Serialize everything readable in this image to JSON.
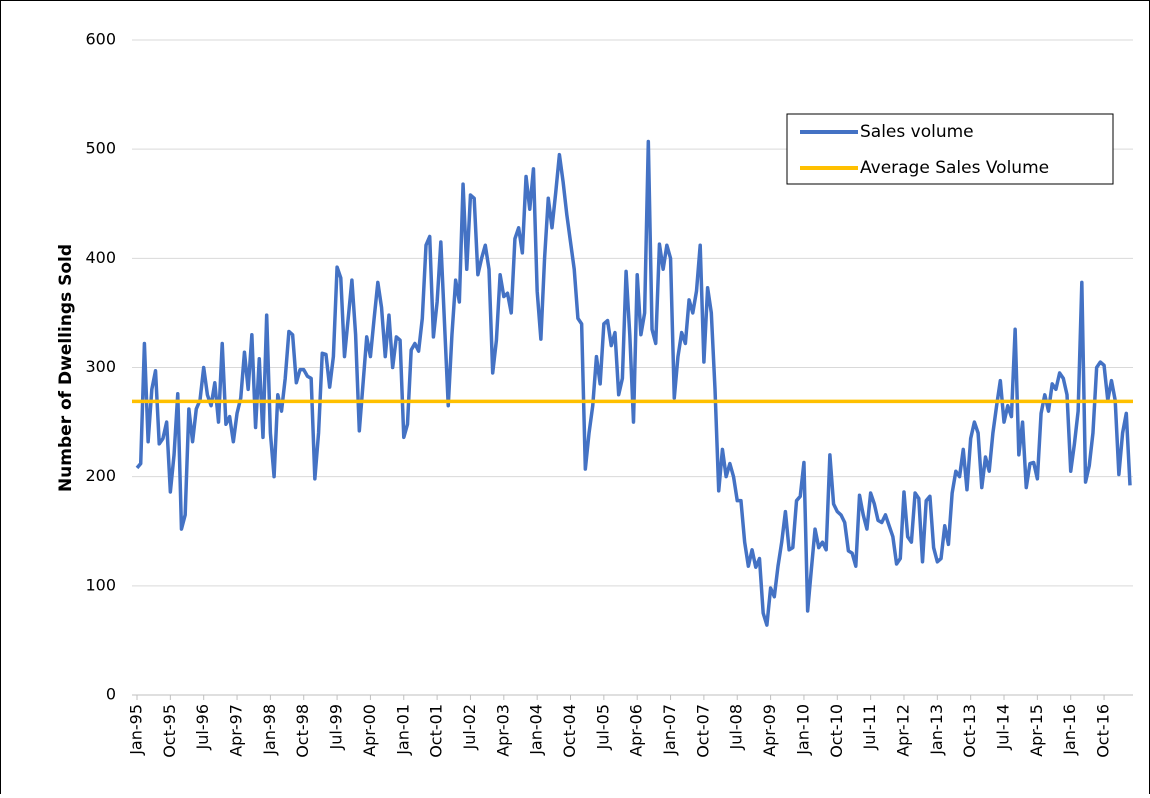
{
  "chart_data": {
    "type": "line",
    "y_label": "Number of Dwellings Sold",
    "categories": [
      "Jan-95",
      null,
      null,
      null,
      null,
      null,
      null,
      null,
      null,
      "Oct-95",
      null,
      null,
      null,
      null,
      null,
      null,
      null,
      null,
      "Jul-96",
      null,
      null,
      null,
      null,
      null,
      null,
      null,
      null,
      "Apr-97",
      null,
      null,
      null,
      null,
      null,
      null,
      null,
      null,
      "Jan-98",
      null,
      null,
      null,
      null,
      null,
      null,
      null,
      null,
      "Oct-98",
      null,
      null,
      null,
      null,
      null,
      null,
      null,
      null,
      "Jul-99",
      null,
      null,
      null,
      null,
      null,
      null,
      null,
      null,
      "Apr-00",
      null,
      null,
      null,
      null,
      null,
      null,
      null,
      null,
      "Jan-01",
      null,
      null,
      null,
      null,
      null,
      null,
      null,
      null,
      "Oct-01",
      null,
      null,
      null,
      null,
      null,
      null,
      null,
      null,
      "Jul-02",
      null,
      null,
      null,
      null,
      null,
      null,
      null,
      null,
      "Apr-03",
      null,
      null,
      null,
      null,
      null,
      null,
      null,
      null,
      "Jan-04",
      null,
      null,
      null,
      null,
      null,
      null,
      null,
      null,
      "Oct-04",
      null,
      null,
      null,
      null,
      null,
      null,
      null,
      null,
      "Jul-05",
      null,
      null,
      null,
      null,
      null,
      null,
      null,
      null,
      "Apr-06",
      null,
      null,
      null,
      null,
      null,
      null,
      null,
      null,
      "Jan-07",
      null,
      null,
      null,
      null,
      null,
      null,
      null,
      null,
      "Oct-07",
      null,
      null,
      null,
      null,
      null,
      null,
      null,
      null,
      "Jul-08",
      null,
      null,
      null,
      null,
      null,
      null,
      null,
      null,
      "Apr-09",
      null,
      null,
      null,
      null,
      null,
      null,
      null,
      null,
      "Jan-10",
      null,
      null,
      null,
      null,
      null,
      null,
      null,
      null,
      "Oct-10",
      null,
      null,
      null,
      null,
      null,
      null,
      null,
      null,
      "Jul-11",
      null,
      null,
      null,
      null,
      null,
      null,
      null,
      null,
      "Apr-12",
      null,
      null,
      null,
      null,
      null,
      null,
      null,
      null,
      "Jan-13",
      null,
      null,
      null,
      null,
      null,
      null,
      null,
      null,
      "Oct-13",
      null,
      null,
      null,
      null,
      null,
      null,
      null,
      null,
      "Jul-14",
      null,
      null,
      null,
      null,
      null,
      null,
      null,
      null,
      "Apr-15",
      null,
      null,
      null,
      null,
      null,
      null,
      null,
      null,
      "Jan-16",
      null,
      null,
      null,
      null,
      null,
      null,
      null,
      null,
      "Oct-16",
      null,
      null,
      null,
      null,
      null,
      null,
      null
    ],
    "series": [
      {
        "name": "Sales volume",
        "color": "#4472c4",
        "values": [
          208,
          212,
          322,
          232,
          280,
          297,
          230,
          235,
          250,
          186,
          220,
          276,
          152,
          165,
          262,
          232,
          262,
          270,
          300,
          275,
          265,
          286,
          250,
          322,
          248,
          255,
          232,
          258,
          272,
          314,
          280,
          330,
          245,
          308,
          236,
          348,
          240,
          200,
          275,
          260,
          290,
          333,
          330,
          286,
          298,
          298,
          292,
          290,
          198,
          240,
          313,
          312,
          282,
          310,
          392,
          382,
          310,
          345,
          380,
          330,
          242,
          285,
          328,
          310,
          345,
          378,
          355,
          310,
          348,
          300,
          328,
          325,
          236,
          248,
          316,
          322,
          315,
          345,
          412,
          420,
          328,
          360,
          415,
          340,
          265,
          330,
          380,
          360,
          468,
          390,
          458,
          455,
          385,
          400,
          412,
          390,
          295,
          325,
          385,
          365,
          368,
          350,
          418,
          428,
          405,
          475,
          445,
          482,
          370,
          326,
          400,
          455,
          428,
          460,
          495,
          470,
          440,
          415,
          390,
          345,
          340,
          207,
          240,
          265,
          310,
          285,
          340,
          343,
          320,
          332,
          275,
          290,
          388,
          330,
          250,
          385,
          330,
          350,
          507,
          335,
          322,
          413,
          390,
          412,
          400,
          272,
          310,
          332,
          322,
          362,
          350,
          370,
          412,
          305,
          373,
          350,
          280,
          187,
          225,
          200,
          212,
          200,
          178,
          178,
          140,
          118,
          133,
          117,
          125,
          75,
          64,
          98,
          90,
          118,
          140,
          168,
          133,
          135,
          178,
          182,
          213,
          77,
          115,
          152,
          135,
          140,
          133,
          220,
          175,
          168,
          165,
          158,
          132,
          130,
          118,
          183,
          165,
          152,
          185,
          175,
          160,
          158,
          165,
          155,
          145,
          120,
          125,
          186,
          145,
          140,
          185,
          180,
          122,
          178,
          182,
          135,
          122,
          125,
          155,
          138,
          185,
          205,
          200,
          225,
          188,
          235,
          250,
          240,
          190,
          218,
          205,
          240,
          265,
          288,
          250,
          265,
          255,
          335,
          220,
          250,
          190,
          212,
          213,
          198,
          258,
          275,
          260,
          285,
          280,
          295,
          290,
          275,
          205,
          230,
          260,
          378,
          195,
          210,
          240,
          300,
          305,
          302,
          270,
          288,
          270,
          202,
          240,
          258,
          192
        ]
      }
    ],
    "average": {
      "name": "Average Sales Volume",
      "value": 269,
      "color": "#ffc000"
    },
    "ylim": [
      0,
      600
    ],
    "yticks": [
      0,
      100,
      200,
      300,
      400,
      500,
      600
    ],
    "grid": true
  }
}
